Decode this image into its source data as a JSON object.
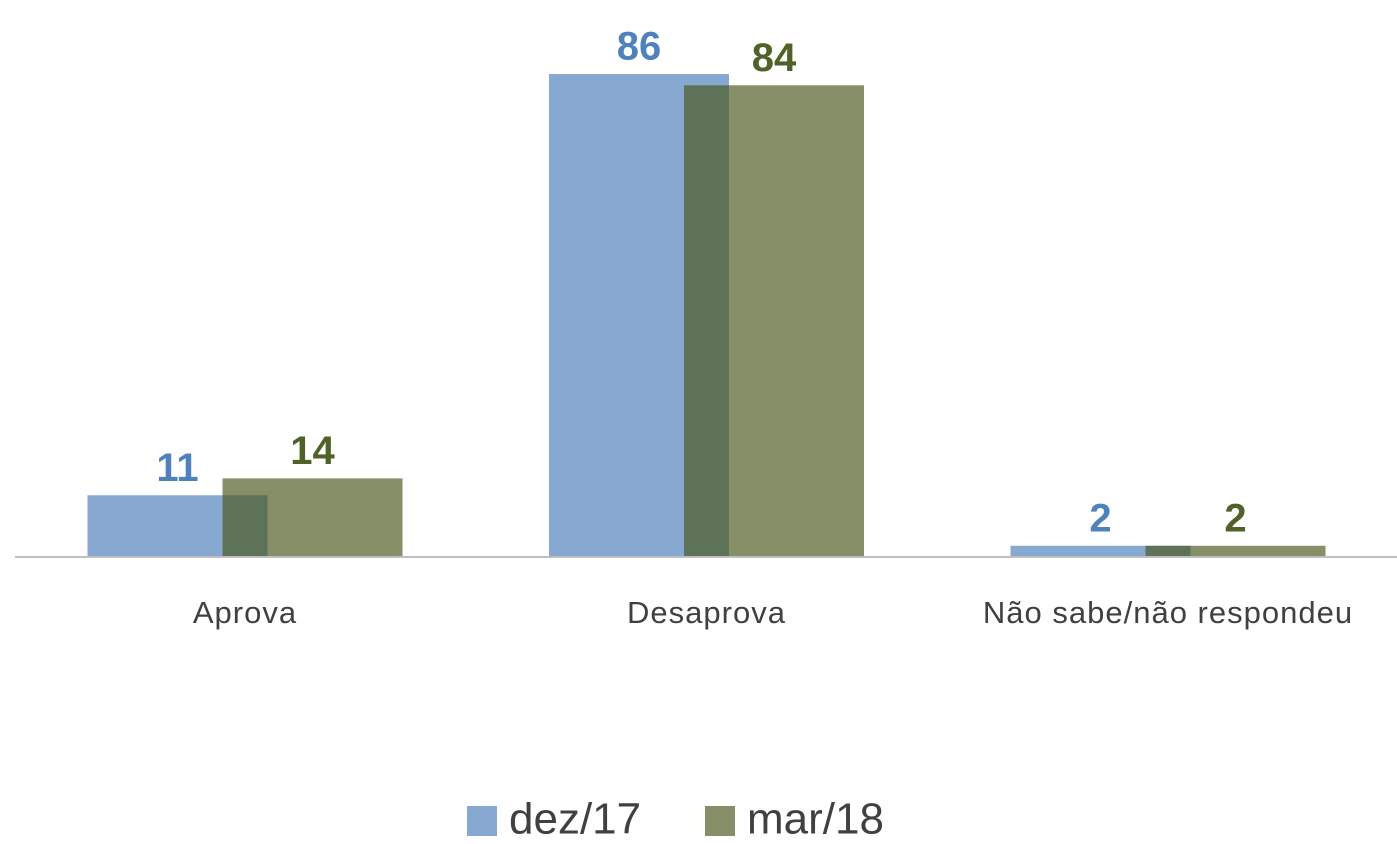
{
  "chart_data": {
    "type": "bar",
    "categories": [
      "Aprova",
      "Desaprova",
      "Não sabe/não respondeu"
    ],
    "series": [
      {
        "name": "dez/17",
        "color": "#87a8d0",
        "label_color": "#4f81bd",
        "values": [
          11,
          86,
          2
        ]
      },
      {
        "name": "mar/18",
        "color": "#4a581c",
        "label_color": "#4f6228",
        "values": [
          14,
          84,
          2
        ]
      }
    ],
    "ylim": [
      0,
      90
    ],
    "legend": "bottom"
  }
}
